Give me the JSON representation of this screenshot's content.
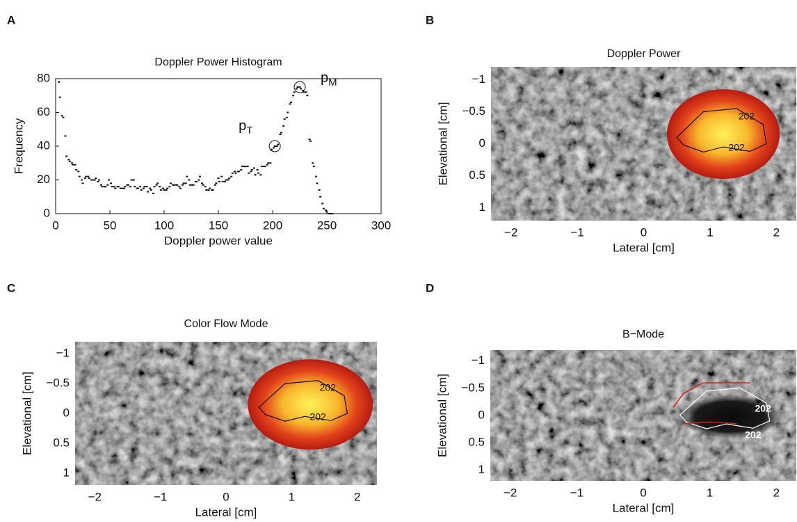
{
  "chart_data": [
    {
      "type": "scatter",
      "panel": "A",
      "title": "Doppler Power Histogram",
      "xlabel": "Doppler power value",
      "ylabel": "Frequency",
      "xlim": [
        0,
        300
      ],
      "xticks": [
        0,
        50,
        100,
        150,
        200,
        250,
        300
      ],
      "ylim": [
        0,
        80
      ],
      "yticks": [
        0,
        20,
        40,
        60,
        80
      ],
      "color": "#111111",
      "x": [
        3,
        4,
        6,
        7,
        9,
        10,
        12,
        13,
        15,
        16,
        18,
        19,
        21,
        22,
        24,
        25,
        27,
        28,
        30,
        31,
        33,
        34,
        36,
        37,
        39,
        40,
        42,
        43,
        45,
        46,
        48,
        49,
        51,
        52,
        54,
        55,
        57,
        58,
        60,
        61,
        63,
        64,
        66,
        67,
        69,
        70,
        72,
        73,
        75,
        76,
        78,
        79,
        81,
        82,
        84,
        85,
        87,
        88,
        90,
        91,
        93,
        94,
        96,
        97,
        99,
        100,
        102,
        103,
        105,
        106,
        108,
        109,
        111,
        112,
        114,
        115,
        117,
        118,
        120,
        121,
        123,
        124,
        126,
        127,
        129,
        130,
        132,
        133,
        135,
        136,
        138,
        139,
        141,
        142,
        144,
        145,
        147,
        148,
        150,
        151,
        153,
        154,
        156,
        157,
        159,
        160,
        162,
        163,
        165,
        166,
        168,
        169,
        171,
        172,
        174,
        175,
        177,
        178,
        180,
        181,
        183,
        184,
        186,
        187,
        189,
        190,
        192,
        193,
        195,
        196,
        198,
        199,
        201,
        202,
        204,
        205,
        207,
        208,
        210,
        211,
        213,
        214,
        216,
        217,
        219,
        220,
        222,
        223,
        225,
        226,
        228,
        229,
        231,
        232,
        234,
        235,
        237,
        238,
        240,
        241,
        243,
        244,
        246,
        247,
        249,
        250,
        252,
        253,
        255
      ],
      "values": [
        78,
        69,
        58,
        57,
        46,
        34,
        32,
        31,
        30,
        29,
        29,
        26,
        25,
        22,
        20,
        18,
        21,
        22,
        22,
        21,
        20,
        20,
        20,
        21,
        19,
        20,
        17,
        16,
        16,
        16,
        17,
        20,
        18,
        16,
        16,
        15,
        16,
        16,
        15,
        15,
        15,
        16,
        17,
        17,
        16,
        20,
        20,
        16,
        15,
        15,
        16,
        14,
        15,
        16,
        16,
        13,
        15,
        14,
        12,
        16,
        17,
        18,
        16,
        14,
        15,
        14,
        14,
        15,
        16,
        18,
        17,
        17,
        17,
        17,
        16,
        15,
        17,
        18,
        18,
        22,
        20,
        17,
        17,
        17,
        19,
        19,
        20,
        22,
        18,
        17,
        16,
        14,
        14,
        15,
        14,
        14,
        17,
        18,
        21,
        19,
        22,
        19,
        19,
        20,
        20,
        21,
        22,
        24,
        25,
        24,
        25,
        25,
        26,
        28,
        28,
        28,
        28,
        24,
        25,
        26,
        27,
        23,
        26,
        24,
        23,
        28,
        28,
        28,
        29,
        30,
        30,
        38,
        39,
        40,
        40,
        41,
        47,
        48,
        52,
        56,
        57,
        60,
        65,
        66,
        70,
        72,
        74,
        75,
        75,
        74,
        73,
        72,
        72,
        70,
        44,
        43,
        30,
        28,
        22,
        18,
        14,
        10,
        6,
        3,
        2,
        1,
        0,
        0,
        0
      ],
      "annotations": [
        {
          "text": "p",
          "subscript": "T",
          "x": 202,
          "y": 40
        },
        {
          "text": "p",
          "subscript": "M",
          "x": 225,
          "y": 75
        }
      ]
    },
    {
      "type": "image",
      "panel": "B",
      "title": "Doppler Power",
      "xlabel": "Lateral [cm]",
      "ylabel": "Elevational [cm]",
      "xlim": [
        -2.3,
        2.3
      ],
      "xticks": [
        {
          "value": -2,
          "label": "−2"
        },
        {
          "value": -1,
          "label": "−1"
        },
        0,
        1,
        2
      ],
      "ylim": [
        1.2,
        -1.2
      ],
      "yticks": [
        {
          "value": -1,
          "label": "−1"
        },
        {
          "value": -0.5,
          "label": "−0.5"
        },
        0,
        0.5,
        1
      ],
      "contour_labels": [
        "202",
        "202"
      ]
    },
    {
      "type": "image",
      "panel": "C",
      "title": "Color Flow Mode",
      "xlabel": "Lateral [cm]",
      "ylabel": "Elevational [cm]",
      "xlim": [
        -2.3,
        2.3
      ],
      "xticks": [
        {
          "value": -2,
          "label": "−2"
        },
        {
          "value": -1,
          "label": "−1"
        },
        0,
        1,
        2
      ],
      "ylim": [
        1.2,
        -1.2
      ],
      "yticks": [
        {
          "value": -1,
          "label": "−1"
        },
        {
          "value": -0.5,
          "label": "−0.5"
        },
        0,
        0.5,
        1
      ],
      "contour_labels": [
        "202",
        "202"
      ]
    },
    {
      "type": "image",
      "panel": "D",
      "title": "B−Mode",
      "xlabel": "Lateral [cm]",
      "ylabel": "Elevational [cm]",
      "xlim": [
        -2.3,
        2.3
      ],
      "xticks": [
        {
          "value": -2,
          "label": "−2"
        },
        {
          "value": -1,
          "label": "−1"
        },
        0,
        1,
        2
      ],
      "ylim": [
        1.2,
        -1.2
      ],
      "yticks": [
        {
          "value": -1,
          "label": "−1"
        },
        {
          "value": -0.5,
          "label": "−0.5"
        },
        0,
        0.5,
        1
      ],
      "contour_labels": [
        "202",
        "202"
      ]
    }
  ]
}
